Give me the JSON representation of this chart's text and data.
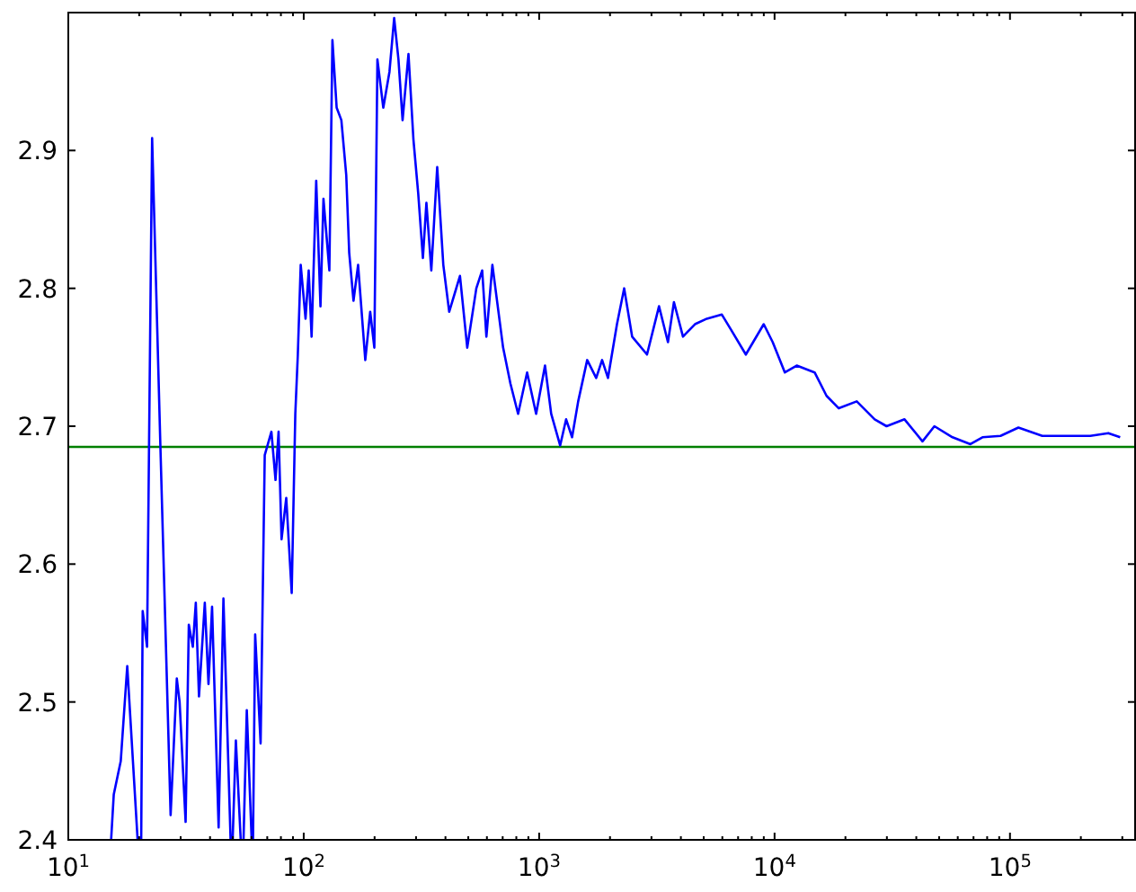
{
  "chart_data": {
    "type": "line",
    "log": "x",
    "grid": false,
    "xlim": [
      10,
      340000
    ],
    "ylim": [
      2.4,
      3.0
    ],
    "xticks": [
      {
        "value": 10,
        "label": "10$^{1}$"
      },
      {
        "value": 20,
        "label": null
      },
      {
        "value": 30,
        "label": null
      },
      {
        "value": 40,
        "label": null
      },
      {
        "value": 50,
        "label": null
      },
      {
        "value": 60,
        "label": null
      },
      {
        "value": 70,
        "label": null
      },
      {
        "value": 80,
        "label": null
      },
      {
        "value": 90,
        "label": null
      },
      {
        "value": 100,
        "label": "10$^{2}$"
      },
      {
        "value": 200,
        "label": null
      },
      {
        "value": 300,
        "label": null
      },
      {
        "value": 400,
        "label": null
      },
      {
        "value": 500,
        "label": null
      },
      {
        "value": 600,
        "label": null
      },
      {
        "value": 700,
        "label": null
      },
      {
        "value": 800,
        "label": null
      },
      {
        "value": 900,
        "label": null
      },
      {
        "value": 1000,
        "label": "10$^{3}$"
      },
      {
        "value": 2000,
        "label": null
      },
      {
        "value": 3000,
        "label": null
      },
      {
        "value": 4000,
        "label": null
      },
      {
        "value": 5000,
        "label": null
      },
      {
        "value": 6000,
        "label": null
      },
      {
        "value": 7000,
        "label": null
      },
      {
        "value": 8000,
        "label": null
      },
      {
        "value": 9000,
        "label": null
      },
      {
        "value": 10000,
        "label": "10$^{4}$"
      },
      {
        "value": 20000,
        "label": null
      },
      {
        "value": 30000,
        "label": null
      },
      {
        "value": 40000,
        "label": null
      },
      {
        "value": 50000,
        "label": null
      },
      {
        "value": 60000,
        "label": null
      },
      {
        "value": 70000,
        "label": null
      },
      {
        "value": 80000,
        "label": null
      },
      {
        "value": 90000,
        "label": null
      },
      {
        "value": 100000,
        "label": "10$^{5}$"
      },
      {
        "value": 200000,
        "label": null
      },
      {
        "value": 300000,
        "label": null
      }
    ],
    "yticks": [
      2.4,
      2.5,
      2.6,
      2.7,
      2.8,
      2.9,
      {
        "value": 3.0,
        "label": null
      }
    ],
    "ref_lines": [
      {
        "axis": "y",
        "value": 2.685,
        "color": "#008000"
      }
    ],
    "series": [
      {
        "color": "#0000ff",
        "x": [
          15.2,
          15.6,
          16.7,
          17.8,
          19.7,
          20,
          20.4,
          20.7,
          21.6,
          22.7,
          24.6,
          27.2,
          28.9,
          29.7,
          31.5,
          32.5,
          33.8,
          34.8,
          35.9,
          38.0,
          39.4,
          40.8,
          43.5,
          45.6,
          48.9,
          49.4,
          49.9,
          51.5,
          54.0,
          54.8,
          55.5,
          57.3,
          60.1,
          60.5,
          60.9,
          62.2,
          65.6,
          68.3,
          72.9,
          75.9,
          78.2,
          80.5,
          84.3,
          88.9,
          92.1,
          94.4,
          97.1,
          101.8,
          105,
          108,
          113,
          117.8,
          121.3,
          128.5,
          132.4,
          138,
          144.5,
          151.6,
          156,
          162.7,
          170.2,
          182.6,
          191.6,
          199.5,
          205.6,
          217.8,
          231.3,
          242.2,
          252.6,
          263,
          278.6,
          292.4,
          306.4,
          320.8,
          332,
          348.3,
          369,
          391.7,
          415,
          461,
          495,
          541,
          573,
          597,
          633,
          703,
          755,
          814,
          889,
          971,
          1059,
          1125,
          1228,
          1302,
          1380,
          1465,
          1600,
          1747,
          1851,
          1961,
          2141,
          2297,
          2483,
          2872,
          3230,
          3525,
          3738,
          4083,
          4592,
          5157,
          5972,
          6531,
          7551,
          8995,
          9820,
          11060,
          12420,
          14800,
          16630,
          18740,
          22340,
          26620,
          29910,
          35650,
          42500,
          47750,
          57000,
          67900,
          76400,
          91200,
          108600,
          137100,
          173400,
          219300,
          261600,
          293800
        ],
        "values": [
          2.4,
          2.433,
          2.457,
          2.526,
          2.4,
          null,
          2.4,
          2.566,
          2.54,
          2.909,
          2.687,
          2.418,
          2.517,
          2.5,
          2.413,
          2.556,
          2.54,
          2.572,
          2.504,
          2.572,
          2.513,
          2.569,
          2.409,
          2.575,
          2.4,
          null,
          2.4,
          2.472,
          2.4,
          null,
          2.4,
          2.494,
          2.4,
          null,
          2.4,
          2.549,
          2.47,
          2.679,
          2.696,
          2.661,
          2.696,
          2.618,
          2.648,
          2.579,
          2.709,
          2.752,
          2.817,
          2.778,
          2.813,
          2.765,
          2.878,
          2.787,
          2.865,
          2.813,
          2.98,
          2.931,
          2.922,
          2.882,
          2.826,
          2.791,
          2.817,
          2.748,
          2.783,
          2.757,
          2.966,
          2.931,
          2.957,
          2.996,
          2.966,
          2.922,
          2.97,
          2.908,
          2.869,
          2.822,
          2.862,
          2.813,
          2.888,
          2.817,
          2.783,
          2.809,
          2.757,
          2.8,
          2.813,
          2.765,
          2.817,
          2.757,
          2.731,
          2.709,
          2.739,
          2.709,
          2.744,
          2.709,
          2.686,
          2.705,
          2.692,
          2.718,
          2.748,
          2.735,
          2.748,
          2.735,
          2.774,
          2.8,
          2.765,
          2.752,
          2.787,
          2.761,
          2.79,
          2.765,
          2.774,
          2.778,
          2.781,
          2.77,
          2.752,
          2.774,
          2.761,
          2.739,
          2.744,
          2.739,
          2.722,
          2.713,
          2.718,
          2.705,
          2.7,
          2.705,
          2.689,
          2.7,
          2.692,
          2.687,
          2.692,
          2.693,
          2.699,
          2.693,
          2.693,
          2.693,
          2.695,
          2.692
        ]
      }
    ]
  }
}
